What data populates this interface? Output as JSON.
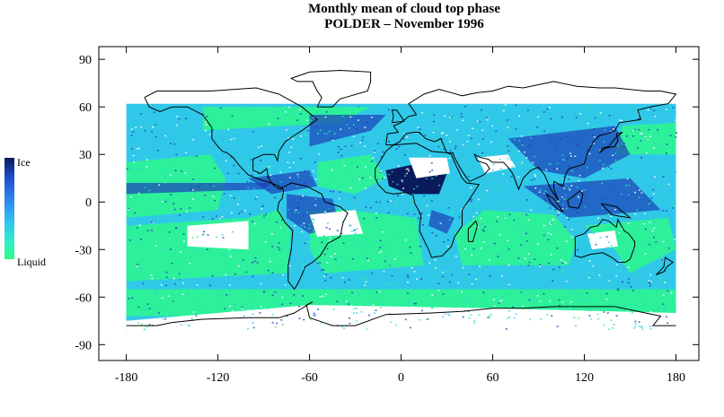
{
  "title": {
    "line1": "Monthly mean of cloud top phase",
    "line2": "POLDER – November 1996"
  },
  "legend": {
    "top_label": "Ice",
    "bottom_label": "Liquid",
    "colors": [
      "#0b1a5a",
      "#1f4fd0",
      "#2f8ff0",
      "#30c8f0",
      "#30f0c0",
      "#2dfa8a"
    ]
  },
  "map_data": {
    "x_ticks": [
      "-180",
      "-120",
      "-60",
      "0",
      "60",
      "120",
      "180"
    ],
    "y_ticks": [
      "90",
      "60",
      "30",
      "0",
      "-30",
      "-60",
      "-90"
    ],
    "xlim": [
      -198,
      195
    ],
    "ylim": [
      -100,
      98
    ],
    "data_lat_range": [
      -85,
      62
    ],
    "colors": {
      "liquid": "#2df09a",
      "mixed": "#30c8e8",
      "ice": "#1d3fb8",
      "deep_ice": "#0b1a5a",
      "no_data": "#ffffff",
      "coast": "#000000"
    }
  }
}
